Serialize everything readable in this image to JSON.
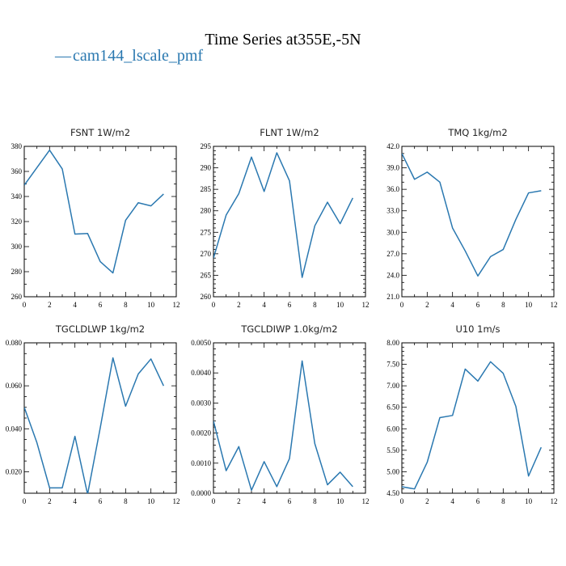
{
  "figure": {
    "title": "Time Series at355E,-5N",
    "legend": {
      "label": "cam144_lscale_pmf",
      "color": "#2a78b0",
      "marker": "—"
    }
  },
  "chart_data": [
    {
      "type": "line",
      "title": "FSNT   1W/m2",
      "x": [
        0,
        1,
        2,
        3,
        4,
        5,
        6,
        7,
        8,
        9,
        10,
        11
      ],
      "series": [
        {
          "values": [
            349,
            363,
            377,
            362,
            310,
            310.5,
            288,
            279,
            321,
            335,
            332.5,
            342
          ]
        }
      ],
      "xlim": [
        0,
        12
      ],
      "ylim": [
        260,
        380
      ],
      "xticks": [
        0,
        2,
        4,
        6,
        8,
        10,
        12
      ],
      "xticks_minor": 1,
      "yticks": [
        260,
        280,
        300,
        320,
        340,
        360,
        380
      ],
      "yticks_minor": 10,
      "ydecimals": 0
    },
    {
      "type": "line",
      "title": "FLNT   1W/m2",
      "x": [
        0,
        1,
        2,
        3,
        4,
        5,
        6,
        7,
        8,
        9,
        10,
        11
      ],
      "series": [
        {
          "values": [
            269,
            279,
            284,
            292.5,
            284.5,
            293.5,
            287,
            264.5,
            276.5,
            282,
            277,
            283
          ]
        }
      ],
      "xlim": [
        0,
        12
      ],
      "ylim": [
        260,
        295
      ],
      "xticks": [
        0,
        2,
        4,
        6,
        8,
        10,
        12
      ],
      "xticks_minor": 1,
      "yticks": [
        260,
        265,
        270,
        275,
        280,
        285,
        290,
        295
      ],
      "yticks_minor": 1,
      "ydecimals": 0
    },
    {
      "type": "line",
      "title": "TMQ   1kg/m2",
      "x": [
        0,
        1,
        2,
        3,
        4,
        5,
        6,
        7,
        8,
        9,
        10,
        11
      ],
      "series": [
        {
          "values": [
            41.0,
            37.4,
            38.4,
            37.0,
            30.6,
            27.4,
            23.9,
            26.6,
            27.6,
            31.8,
            35.5,
            35.8
          ]
        }
      ],
      "xlim": [
        0,
        12
      ],
      "ylim": [
        21,
        42
      ],
      "xticks": [
        0,
        2,
        4,
        6,
        8,
        10,
        12
      ],
      "xticks_minor": 1,
      "yticks": [
        21,
        24,
        27,
        30,
        33,
        36,
        39,
        42
      ],
      "yticks_minor": 1,
      "ydecimals": 1
    },
    {
      "type": "line",
      "title": "TGCLDLWP   1kg/m2",
      "x": [
        0,
        1,
        2,
        3,
        4,
        5,
        6,
        7,
        8,
        9,
        10,
        11
      ],
      "series": [
        {
          "values": [
            0.05,
            0.0335,
            0.0125,
            0.0125,
            0.0365,
            0.0095,
            0.0405,
            0.073,
            0.0505,
            0.0655,
            0.0725,
            0.06
          ]
        }
      ],
      "xlim": [
        0,
        12
      ],
      "ylim": [
        0.01,
        0.08
      ],
      "xticks": [
        0,
        2,
        4,
        6,
        8,
        10,
        12
      ],
      "xticks_minor": 1,
      "yticks": [
        0.02,
        0.04,
        0.06,
        0.08
      ],
      "yticks_minor": 0.005,
      "ydecimals": 3
    },
    {
      "type": "line",
      "title": "TGCLDIWP   1.0kg/m2",
      "x": [
        0,
        1,
        2,
        3,
        4,
        5,
        6,
        7,
        8,
        9,
        10,
        11
      ],
      "series": [
        {
          "values": [
            0.0024,
            0.00075,
            0.00155,
            0.0001,
            0.00105,
            0.00022,
            0.00115,
            0.0044,
            0.00165,
            0.00028,
            0.0007,
            0.00022
          ]
        }
      ],
      "xlim": [
        0,
        12
      ],
      "ylim": [
        0,
        0.005
      ],
      "xticks": [
        0,
        2,
        4,
        6,
        8,
        10,
        12
      ],
      "xticks_minor": 1,
      "yticks": [
        0,
        0.001,
        0.002,
        0.003,
        0.004,
        0.005
      ],
      "yticks_minor": 0.0002,
      "ydecimals": 4
    },
    {
      "type": "line",
      "title": "U10   1m/s",
      "x": [
        0,
        1,
        2,
        3,
        4,
        5,
        6,
        7,
        8,
        9,
        10,
        11
      ],
      "series": [
        {
          "values": [
            4.65,
            4.6,
            5.22,
            6.26,
            6.31,
            7.39,
            7.11,
            7.56,
            7.29,
            6.52,
            4.9,
            5.57
          ]
        }
      ],
      "xlim": [
        0,
        12
      ],
      "ylim": [
        4.5,
        8.0
      ],
      "xticks": [
        0,
        2,
        4,
        6,
        8,
        10,
        12
      ],
      "xticks_minor": 1,
      "yticks": [
        4.5,
        5.0,
        5.5,
        6.0,
        6.5,
        7.0,
        7.5,
        8.0
      ],
      "yticks_minor": 0.1,
      "ydecimals": 2
    }
  ]
}
